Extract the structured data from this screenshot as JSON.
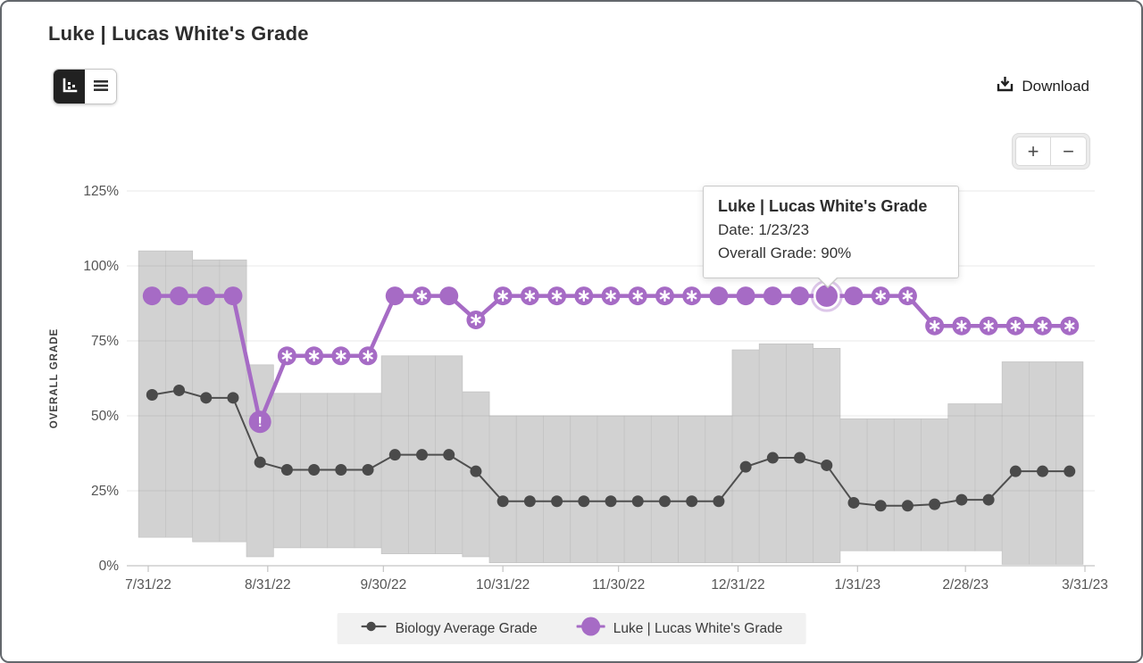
{
  "header": {
    "title": "Luke | Lucas White's Grade"
  },
  "toolbar": {
    "download_label": "Download",
    "view_toggle": {
      "active_view": "chart",
      "views": [
        "chart",
        "table"
      ]
    }
  },
  "zoom_controls": {
    "zoom_in_label": "+",
    "zoom_out_label": "−"
  },
  "tooltip": {
    "title": "Luke | Lucas White's Grade",
    "date_line": "Date: 1/23/23",
    "grade_line": "Overall Grade: 90%"
  },
  "colors": {
    "purple": "#a66bc5",
    "purple_halo": "rgba(166,107,197,0.38)",
    "gray_line": "#4f4f4f",
    "gray_dot": "#4a4a4a",
    "bar_fill": "#d2d2d2",
    "bar_edge": "#c4c4c4",
    "gridline_overlay": "rgba(110,110,110,0.15)",
    "axis_line": "#c4c4c4",
    "tick_text": "#555555",
    "axis_title_text": "#3f3f3f"
  },
  "chart_data": {
    "type": "line",
    "title": "Luke | Lucas White's Grade",
    "xlabel": "",
    "ylabel": "OVERALL GRADE",
    "ylim": [
      0,
      125
    ],
    "grid": true,
    "legend_position": "bottom",
    "yticks": [
      "0%",
      "25%",
      "50%",
      "75%",
      "100%",
      "125%"
    ],
    "xticks": [
      {
        "label": "7/31/22",
        "day": 0
      },
      {
        "label": "8/31/22",
        "day": 31
      },
      {
        "label": "9/30/22",
        "day": 61
      },
      {
        "label": "10/31/22",
        "day": 92
      },
      {
        "label": "11/30/22",
        "day": 122
      },
      {
        "label": "12/31/22",
        "day": 153
      },
      {
        "label": "1/31/23",
        "day": 184
      },
      {
        "label": "2/28/23",
        "day": 212
      },
      {
        "label": "3/31/23",
        "day": 243
      }
    ],
    "x": [
      "8/1/22",
      "8/8/22",
      "8/15/22",
      "8/22/22",
      "8/29/22",
      "9/5/22",
      "9/12/22",
      "9/19/22",
      "9/26/22",
      "10/3/22",
      "10/10/22",
      "10/17/22",
      "10/24/22",
      "10/31/22",
      "11/7/22",
      "11/14/22",
      "11/21/22",
      "11/28/22",
      "12/5/22",
      "12/12/22",
      "12/19/22",
      "12/26/22",
      "1/2/23",
      "1/9/23",
      "1/16/23",
      "1/23/23",
      "1/30/23",
      "2/6/23",
      "2/13/23",
      "2/20/23",
      "2/27/23",
      "3/6/23",
      "3/13/23",
      "3/20/23",
      "3/27/23"
    ],
    "series": [
      {
        "name": "Biology Average Grade",
        "color": "#4f4f4f",
        "values": [
          57,
          58.5,
          56,
          56,
          34.5,
          32,
          32,
          32,
          32,
          37,
          37,
          37,
          31.5,
          21.5,
          21.5,
          21.5,
          21.5,
          21.5,
          21.5,
          21.5,
          21.5,
          21.5,
          33,
          36,
          36,
          33.5,
          21,
          20,
          20,
          20.5,
          22,
          22,
          31.5,
          31.5,
          31.5
        ]
      },
      {
        "name": "Luke | Lucas White's Grade",
        "color": "#a66bc5",
        "values": [
          90,
          90,
          90,
          90,
          48,
          70,
          70,
          70,
          70,
          90,
          90,
          90,
          82,
          90,
          90,
          90,
          90,
          90,
          90,
          90,
          90,
          90,
          90,
          90,
          90,
          90,
          90,
          90,
          90,
          80,
          80,
          80,
          80,
          80,
          80
        ],
        "markers": [
          "dot",
          "dot",
          "dot",
          "dot",
          "warning",
          "star",
          "star",
          "star",
          "star",
          "dot",
          "star",
          "dot",
          "star",
          "star",
          "star",
          "star",
          "star",
          "star",
          "star",
          "star",
          "star",
          "dot",
          "dot",
          "dot",
          "dot",
          "active",
          "dot",
          "star",
          "star",
          "star",
          "star",
          "star",
          "star",
          "star",
          "star"
        ],
        "active_index": 25,
        "active_point": {
          "date": "1/23/23",
          "overall_grade": "90%"
        }
      }
    ],
    "range_bars": [
      [
        9.5,
        105
      ],
      [
        9.5,
        105
      ],
      [
        8,
        102
      ],
      [
        8,
        102
      ],
      [
        3,
        67
      ],
      [
        6,
        57.5
      ],
      [
        6,
        57.5
      ],
      [
        6,
        57.5
      ],
      [
        6,
        57.5
      ],
      [
        4,
        70
      ],
      [
        4,
        70
      ],
      [
        4,
        70
      ],
      [
        3,
        58
      ],
      [
        1,
        50
      ],
      [
        1,
        50
      ],
      [
        1,
        50
      ],
      [
        1,
        50
      ],
      [
        1,
        50
      ],
      [
        1,
        50
      ],
      [
        1,
        50
      ],
      [
        1,
        50
      ],
      [
        1,
        50
      ],
      [
        1,
        72
      ],
      [
        1,
        74
      ],
      [
        1,
        74
      ],
      [
        1,
        72.5
      ],
      [
        5,
        49
      ],
      [
        5,
        49
      ],
      [
        5,
        49
      ],
      [
        5,
        49
      ],
      [
        5,
        54
      ],
      [
        5,
        54
      ],
      [
        0.5,
        68
      ],
      [
        0.5,
        68
      ],
      [
        0.5,
        68
      ]
    ]
  },
  "legend": {
    "items": [
      {
        "label": "Biology Average Grade",
        "marker": "line-dot-gray"
      },
      {
        "label": "Luke | Lucas White's Grade",
        "marker": "dot-purple"
      }
    ]
  }
}
